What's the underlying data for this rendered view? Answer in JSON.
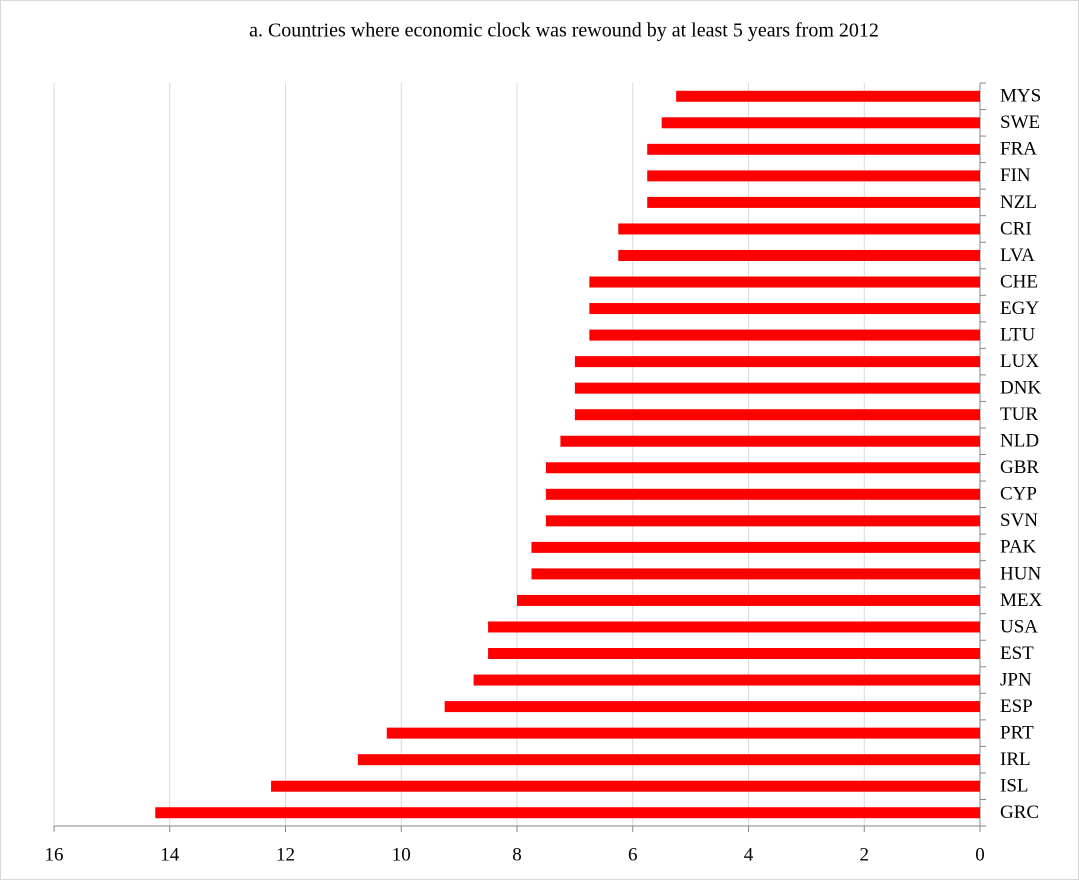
{
  "chart_data": {
    "type": "bar",
    "orientation": "horizontal",
    "title": "a. Countries where economic clock was rewound by at least 5 years from 2012",
    "categories": [
      "MYS",
      "SWE",
      "FRA",
      "FIN",
      "NZL",
      "CRI",
      "LVA",
      "CHE",
      "EGY",
      "LTU",
      "LUX",
      "DNK",
      "TUR",
      "NLD",
      "GBR",
      "CYP",
      "SVN",
      "PAK",
      "HUN",
      "MEX",
      "USA",
      "EST",
      "JPN",
      "ESP",
      "PRT",
      "IRL",
      "ISL",
      "GRC"
    ],
    "values": [
      5.25,
      5.5,
      5.75,
      5.75,
      5.75,
      6.25,
      6.25,
      6.75,
      6.75,
      6.75,
      7,
      7,
      7,
      7.25,
      7.5,
      7.5,
      7.5,
      7.75,
      7.75,
      8,
      8.5,
      8.5,
      8.75,
      9.25,
      10.25,
      10.75,
      12.25,
      14.25
    ],
    "color": "#ff0000",
    "xlim": [
      16,
      0
    ],
    "xticks": [
      16,
      14,
      12,
      10,
      8,
      6,
      4,
      2,
      0
    ],
    "grid": true
  }
}
